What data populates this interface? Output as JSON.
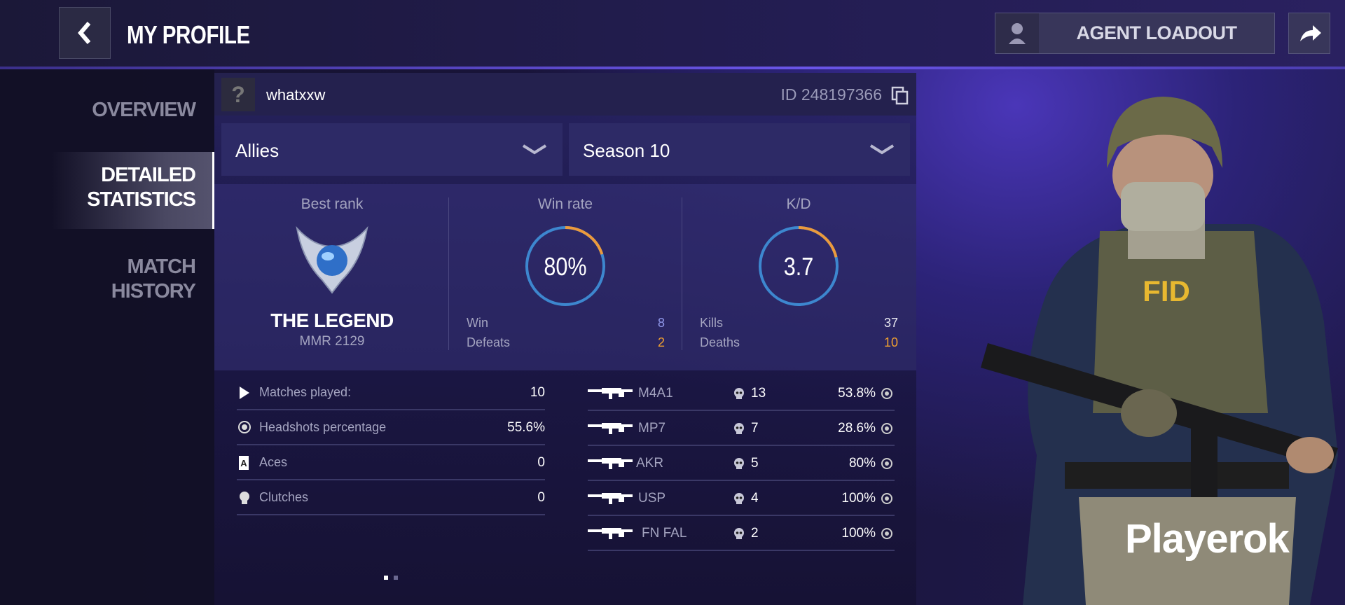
{
  "header": {
    "title": "MY PROFILE",
    "agent_loadout": "AGENT LOADOUT"
  },
  "sidebar": {
    "items": [
      "OVERVIEW",
      "DETAILED STATISTICS",
      "MATCH HISTORY"
    ]
  },
  "profile": {
    "avatar": "?",
    "name": "whatxxw",
    "id": "ID 248197366"
  },
  "filters": [
    "Allies",
    "Season 10"
  ],
  "best_rank": {
    "label": "Best rank",
    "rank": "THE LEGEND",
    "mmr": "MMR 2129"
  },
  "win_rate": {
    "label": "Win rate",
    "value": "80%",
    "rows": [
      {
        "label": "Win",
        "value": "8"
      },
      {
        "label": "Defeats",
        "value": "2"
      }
    ]
  },
  "kd": {
    "label": "K/D",
    "value": "3.7",
    "rows": [
      {
        "label": "Kills",
        "value": "37"
      },
      {
        "label": "Deaths",
        "value": "10"
      }
    ]
  },
  "stats": [
    {
      "label": "Matches played:",
      "value": "10"
    },
    {
      "label": "Headshots percentage",
      "value": "55.6%"
    },
    {
      "label": "Aces",
      "value": "0"
    },
    {
      "label": "Clutches",
      "value": "0"
    }
  ],
  "weapons": [
    {
      "name": "M4A1",
      "kills": "13",
      "percent": "53.8%"
    },
    {
      "name": "MP7",
      "kills": "7",
      "percent": "28.6%"
    },
    {
      "name": "AKR",
      "kills": "5",
      "percent": "80%"
    },
    {
      "name": "USP",
      "kills": "4",
      "percent": "100%"
    },
    {
      "name": "FN FAL",
      "kills": "2",
      "percent": "100%"
    }
  ],
  "character": {
    "vest_text": "FID"
  },
  "watermark": "Playerok"
}
